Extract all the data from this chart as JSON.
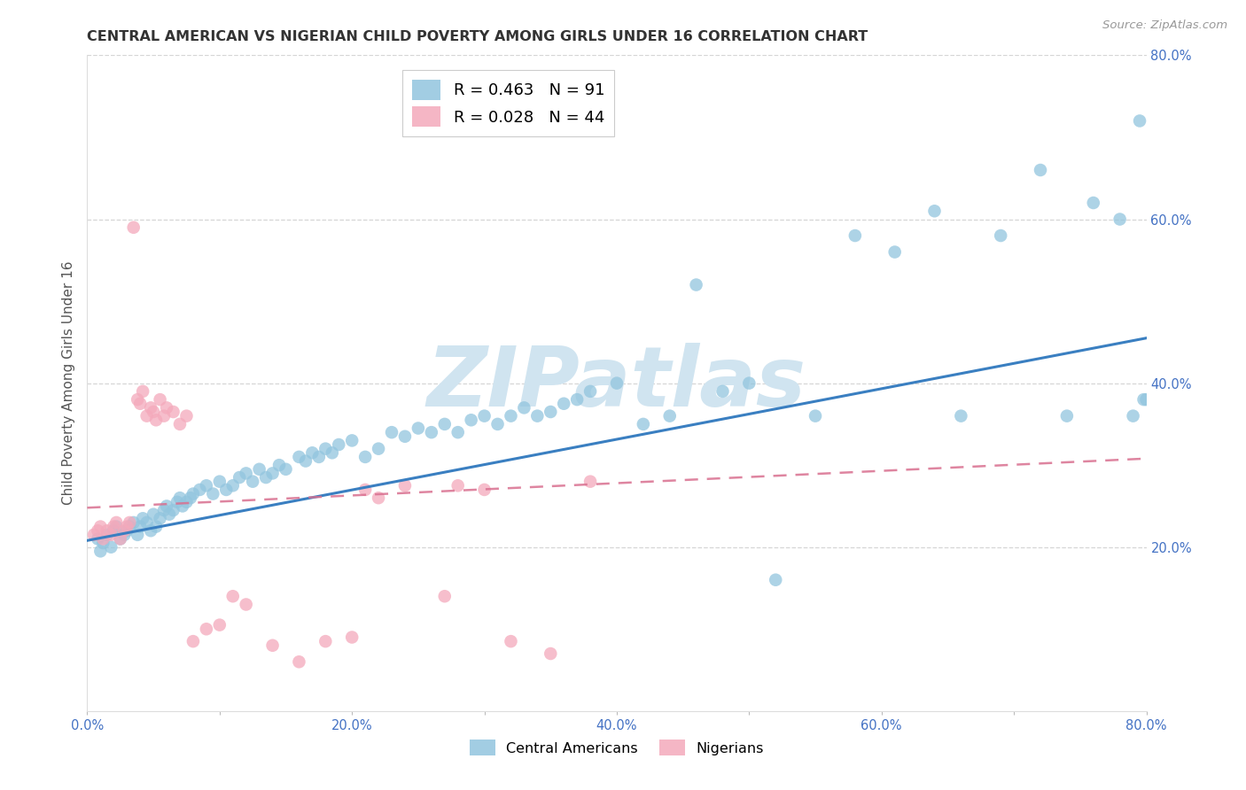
{
  "title": "CENTRAL AMERICAN VS NIGERIAN CHILD POVERTY AMONG GIRLS UNDER 16 CORRELATION CHART",
  "source_text": "Source: ZipAtlas.com",
  "ylabel": "Child Poverty Among Girls Under 16",
  "xlim": [
    0.0,
    0.8
  ],
  "ylim": [
    0.0,
    0.8
  ],
  "xtick_labels": [
    "0.0%",
    "",
    "20.0%",
    "",
    "40.0%",
    "",
    "60.0%",
    "",
    "80.0%"
  ],
  "xtick_values": [
    0.0,
    0.1,
    0.2,
    0.3,
    0.4,
    0.5,
    0.6,
    0.7,
    0.8
  ],
  "right_ytick_labels": [
    "20.0%",
    "40.0%",
    "60.0%",
    "80.0%"
  ],
  "right_ytick_values": [
    0.2,
    0.4,
    0.6,
    0.8
  ],
  "blue_R": 0.463,
  "blue_N": 91,
  "pink_R": 0.028,
  "pink_N": 44,
  "blue_color": "#92c5de",
  "pink_color": "#f4a9bb",
  "blue_line_color": "#3a7fc1",
  "pink_line_color": "#d97090",
  "grid_color": "#cccccc",
  "watermark_color": "#d0e4f0",
  "watermark_text": "ZIPatlas",
  "legend_label_blue": "Central Americans",
  "legend_label_pink": "Nigerians",
  "blue_trendline_x": [
    0.0,
    0.8
  ],
  "blue_trendline_y": [
    0.208,
    0.455
  ],
  "pink_trendline_x": [
    0.0,
    0.8
  ],
  "pink_trendline_y": [
    0.248,
    0.308
  ],
  "background_color": "#ffffff",
  "title_color": "#333333",
  "axis_label_color": "#555555",
  "tick_label_color": "#4472c4",
  "figsize": [
    14.06,
    8.92
  ],
  "dpi": 100,
  "blue_x": [
    0.008,
    0.01,
    0.012,
    0.015,
    0.018,
    0.02,
    0.022,
    0.025,
    0.028,
    0.03,
    0.032,
    0.035,
    0.038,
    0.04,
    0.042,
    0.045,
    0.048,
    0.05,
    0.052,
    0.055,
    0.058,
    0.06,
    0.062,
    0.065,
    0.068,
    0.07,
    0.072,
    0.075,
    0.078,
    0.08,
    0.085,
    0.09,
    0.095,
    0.1,
    0.105,
    0.11,
    0.115,
    0.12,
    0.125,
    0.13,
    0.135,
    0.14,
    0.145,
    0.15,
    0.16,
    0.165,
    0.17,
    0.175,
    0.18,
    0.185,
    0.19,
    0.2,
    0.21,
    0.22,
    0.23,
    0.24,
    0.25,
    0.26,
    0.27,
    0.28,
    0.29,
    0.3,
    0.31,
    0.32,
    0.33,
    0.34,
    0.35,
    0.36,
    0.37,
    0.38,
    0.4,
    0.42,
    0.44,
    0.46,
    0.48,
    0.5,
    0.52,
    0.55,
    0.58,
    0.61,
    0.64,
    0.66,
    0.69,
    0.72,
    0.74,
    0.76,
    0.78,
    0.79,
    0.795,
    0.798,
    0.8
  ],
  "blue_y": [
    0.21,
    0.195,
    0.205,
    0.215,
    0.2,
    0.22,
    0.225,
    0.21,
    0.215,
    0.22,
    0.225,
    0.23,
    0.215,
    0.225,
    0.235,
    0.23,
    0.22,
    0.24,
    0.225,
    0.235,
    0.245,
    0.25,
    0.24,
    0.245,
    0.255,
    0.26,
    0.25,
    0.255,
    0.26,
    0.265,
    0.27,
    0.275,
    0.265,
    0.28,
    0.27,
    0.275,
    0.285,
    0.29,
    0.28,
    0.295,
    0.285,
    0.29,
    0.3,
    0.295,
    0.31,
    0.305,
    0.315,
    0.31,
    0.32,
    0.315,
    0.325,
    0.33,
    0.31,
    0.32,
    0.34,
    0.335,
    0.345,
    0.34,
    0.35,
    0.34,
    0.355,
    0.36,
    0.35,
    0.36,
    0.37,
    0.36,
    0.365,
    0.375,
    0.38,
    0.39,
    0.4,
    0.35,
    0.36,
    0.52,
    0.39,
    0.4,
    0.16,
    0.36,
    0.58,
    0.56,
    0.61,
    0.36,
    0.58,
    0.66,
    0.36,
    0.62,
    0.6,
    0.36,
    0.72,
    0.38,
    0.38
  ],
  "pink_x": [
    0.005,
    0.008,
    0.01,
    0.012,
    0.015,
    0.018,
    0.02,
    0.022,
    0.025,
    0.028,
    0.03,
    0.032,
    0.035,
    0.038,
    0.04,
    0.042,
    0.045,
    0.048,
    0.05,
    0.052,
    0.055,
    0.058,
    0.06,
    0.065,
    0.07,
    0.075,
    0.08,
    0.09,
    0.1,
    0.11,
    0.12,
    0.14,
    0.16,
    0.18,
    0.2,
    0.21,
    0.22,
    0.24,
    0.27,
    0.28,
    0.3,
    0.32,
    0.35,
    0.38
  ],
  "pink_y": [
    0.215,
    0.22,
    0.225,
    0.21,
    0.22,
    0.215,
    0.225,
    0.23,
    0.21,
    0.22,
    0.225,
    0.23,
    0.59,
    0.38,
    0.375,
    0.39,
    0.36,
    0.37,
    0.365,
    0.355,
    0.38,
    0.36,
    0.37,
    0.365,
    0.35,
    0.36,
    0.085,
    0.1,
    0.105,
    0.14,
    0.13,
    0.08,
    0.06,
    0.085,
    0.09,
    0.27,
    0.26,
    0.275,
    0.14,
    0.275,
    0.27,
    0.085,
    0.07,
    0.28
  ]
}
